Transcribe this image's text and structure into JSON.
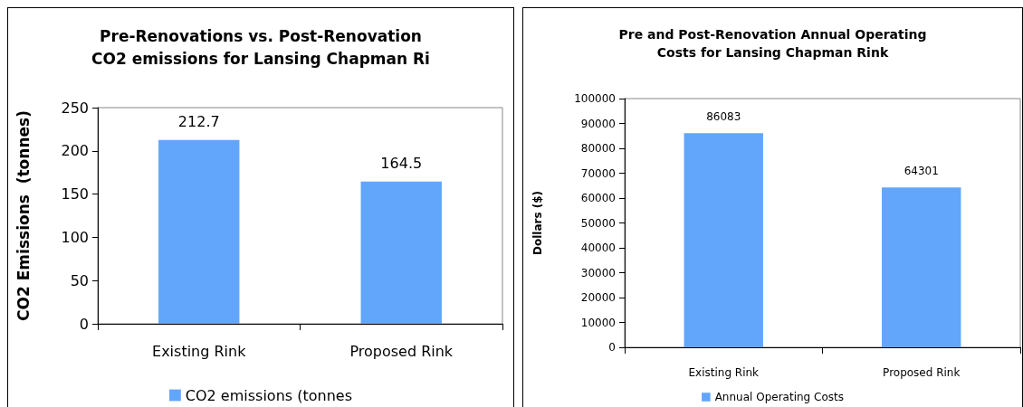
{
  "chart_data": [
    {
      "type": "bar",
      "title": "Pre-Renovations vs. Post-Renovation\nCO2 emissions for Lansing Chapman Ri",
      "ylabel": "CO2 Emissions  (tonnes)",
      "categories": [
        "Existing Rink",
        "Proposed Rink"
      ],
      "series": [
        {
          "name": "CO2 emissions (tonnes",
          "color": "#62a6fc",
          "values": [
            212.7,
            164.5
          ]
        }
      ],
      "ylim": [
        0,
        250
      ],
      "yticks": [
        0,
        50,
        100,
        150,
        200,
        250
      ],
      "grid": false,
      "legend": "bottom",
      "data_labels": true
    },
    {
      "type": "bar",
      "title": "Pre and Post-Renovation Annual Operating\nCosts for Lansing Chapman Rink",
      "ylabel": "Dollars ($)",
      "categories": [
        "Existing Rink",
        "Proposed Rink"
      ],
      "series": [
        {
          "name": "Annual Operating Costs",
          "color": "#62a6fc",
          "values": [
            86083,
            64301
          ]
        }
      ],
      "ylim": [
        0,
        100000
      ],
      "yticks": [
        0,
        10000,
        20000,
        30000,
        40000,
        50000,
        60000,
        70000,
        80000,
        90000,
        100000
      ],
      "grid": false,
      "legend": "bottom",
      "data_labels": true
    }
  ]
}
